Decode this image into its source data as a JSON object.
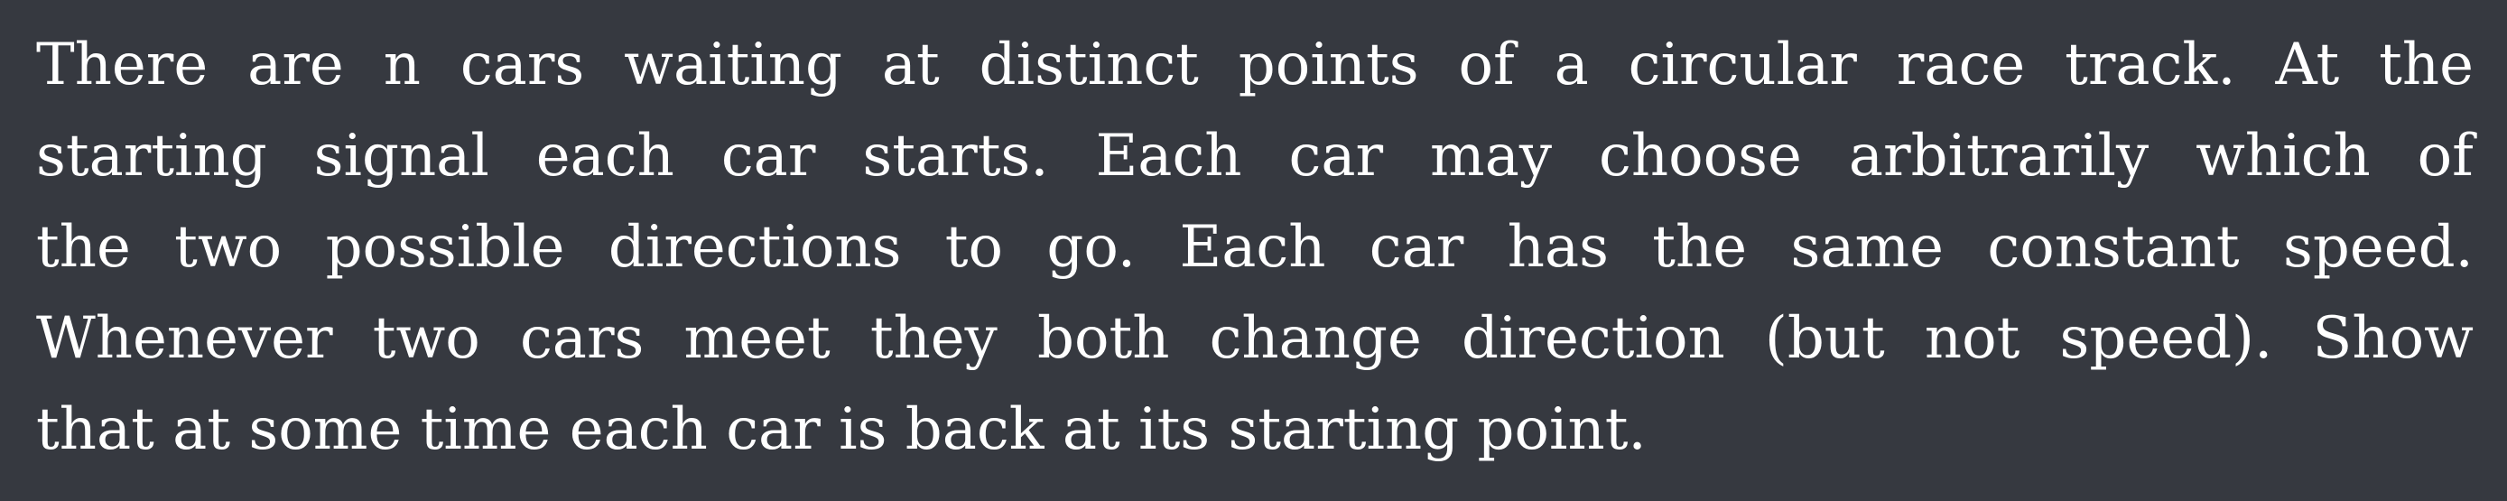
{
  "problem": {
    "lines": [
      "There are n cars waiting at distinct points of a circular race track.  At the",
      "starting signal each car starts.  Each car may choose arbitrarily which of",
      "the two possible directions to go.  Each car has the same constant speed.",
      "Whenever two cars meet they both change direction (but not speed).  Show",
      "that at some time each car is back at its starting point."
    ]
  }
}
